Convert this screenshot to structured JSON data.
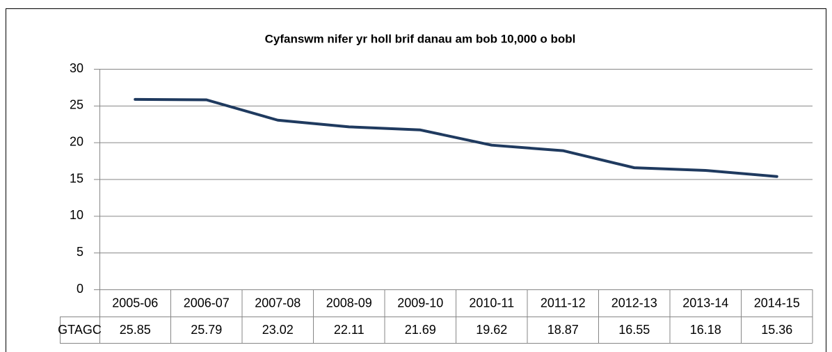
{
  "chart_data": {
    "type": "line",
    "title": "Cyfanswm nifer yr holl brif danau am bob 10,000 o bobl",
    "categories": [
      "2005-06",
      "2006-07",
      "2007-08",
      "2008-09",
      "2009-10",
      "2010-11",
      "2011-12",
      "2012-13",
      "2013-14",
      "2014-15"
    ],
    "series": [
      {
        "name": "GTAGC",
        "color": "#1f3a5f",
        "values": [
          25.85,
          25.79,
          23.02,
          22.11,
          21.69,
          19.62,
          18.87,
          16.55,
          16.18,
          15.36
        ]
      }
    ],
    "ylim": [
      0,
      30
    ],
    "yticks": [
      0,
      5,
      10,
      15,
      20,
      25,
      30
    ],
    "grid": true
  }
}
